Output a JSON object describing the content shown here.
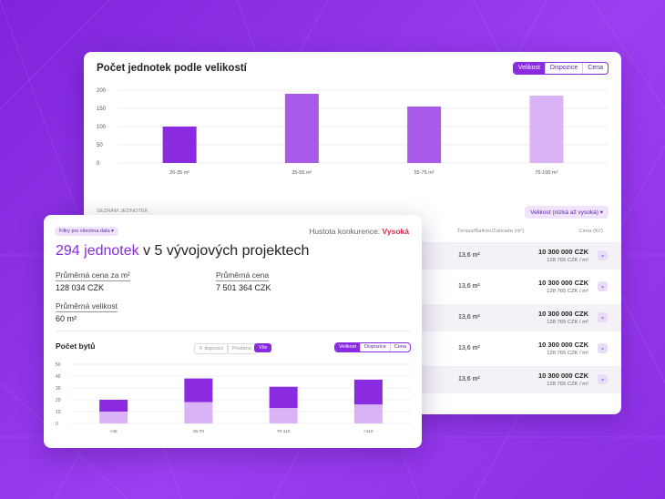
{
  "back_panel": {
    "title": "Počet jednotek podle velikostí",
    "tabs": [
      {
        "label": "Velikost",
        "active": true
      },
      {
        "label": "Dispozice",
        "active": false
      },
      {
        "label": "Cena",
        "active": false
      }
    ],
    "list_label": "SEZNAM JEDNOTEK",
    "sort_label": "Velikost (nízká až vysoká)",
    "column_header": "Terasa/Balkon/Zahrada (m²)",
    "column_header_price": "Cena (Kč)",
    "rows": [
      {
        "area": "13,6 m²",
        "price": "10 300 000 CZK",
        "unit_price": "128 765 CZK / m²"
      },
      {
        "area": "13,6 m²",
        "price": "10 300 000 CZK",
        "unit_price": "128 765 CZK / m²"
      },
      {
        "area": "13,6 m²",
        "price": "10 300 000 CZK",
        "unit_price": "128 765 CZK / m²"
      },
      {
        "area": "13,6 m²",
        "price": "10 300 000 CZK",
        "unit_price": "128 765 CZK / m²"
      },
      {
        "area": "13,6 m²",
        "price": "10 300 000 CZK",
        "unit_price": "128 765 CZK / m²"
      }
    ]
  },
  "front_panel": {
    "filter_label": "Filtry pro všechna data",
    "competition_label": "Hustota konkurence:",
    "competition_value": "Vysoká",
    "headline_count": "294 jednotek",
    "headline_rest": "v 5 vývojových projektech",
    "metrics": {
      "avg_price_m2_label": "Průměrná cena za m²",
      "avg_price_m2_value": "128 034 CZK",
      "avg_price_label": "Průměrná cena",
      "avg_price_value": "7 501 364 CZK",
      "avg_size_label": "Průměrná velikost",
      "avg_size_value": "60 m²"
    },
    "chart_title": "Počet bytů",
    "status_chips": [
      {
        "label": "K dispozici",
        "active": false
      },
      {
        "label": "Prodáno",
        "active": false
      },
      {
        "label": "Vše",
        "active": true
      }
    ],
    "tabs": [
      {
        "label": "Velikost",
        "active": true
      },
      {
        "label": "Dispozice",
        "active": false
      },
      {
        "label": "Cena",
        "active": false
      }
    ]
  },
  "colors": {
    "accent": "#8a2be2",
    "bar_light": "#d9b3f5",
    "bar_mid": "#a95ae8",
    "bar_dark": "#8a2be2",
    "competition_high": "#d8284a"
  },
  "chart_data": [
    {
      "type": "bar",
      "title": "Počet jednotek podle velikostí",
      "categories": [
        "20-35 m²",
        "35-55 m²",
        "55-75 m²",
        "76-100 m²"
      ],
      "values": [
        100,
        190,
        155,
        185
      ],
      "yticks": [
        0,
        50,
        100,
        150,
        200
      ],
      "ylim": [
        0,
        200
      ],
      "grid": true,
      "legend": "none"
    },
    {
      "type": "bar",
      "title": "Počet bytů",
      "stacked": true,
      "categories": [
        "<45",
        "45-70",
        "70-110",
        ">110"
      ],
      "series": [
        {
          "values": [
            10,
            18,
            13,
            16
          ]
        },
        {
          "values": [
            10,
            20,
            18,
            21
          ]
        }
      ],
      "yticks": [
        0,
        10,
        20,
        30,
        40,
        50
      ],
      "ylim": [
        0,
        50
      ],
      "grid": true,
      "legend": "none"
    }
  ]
}
